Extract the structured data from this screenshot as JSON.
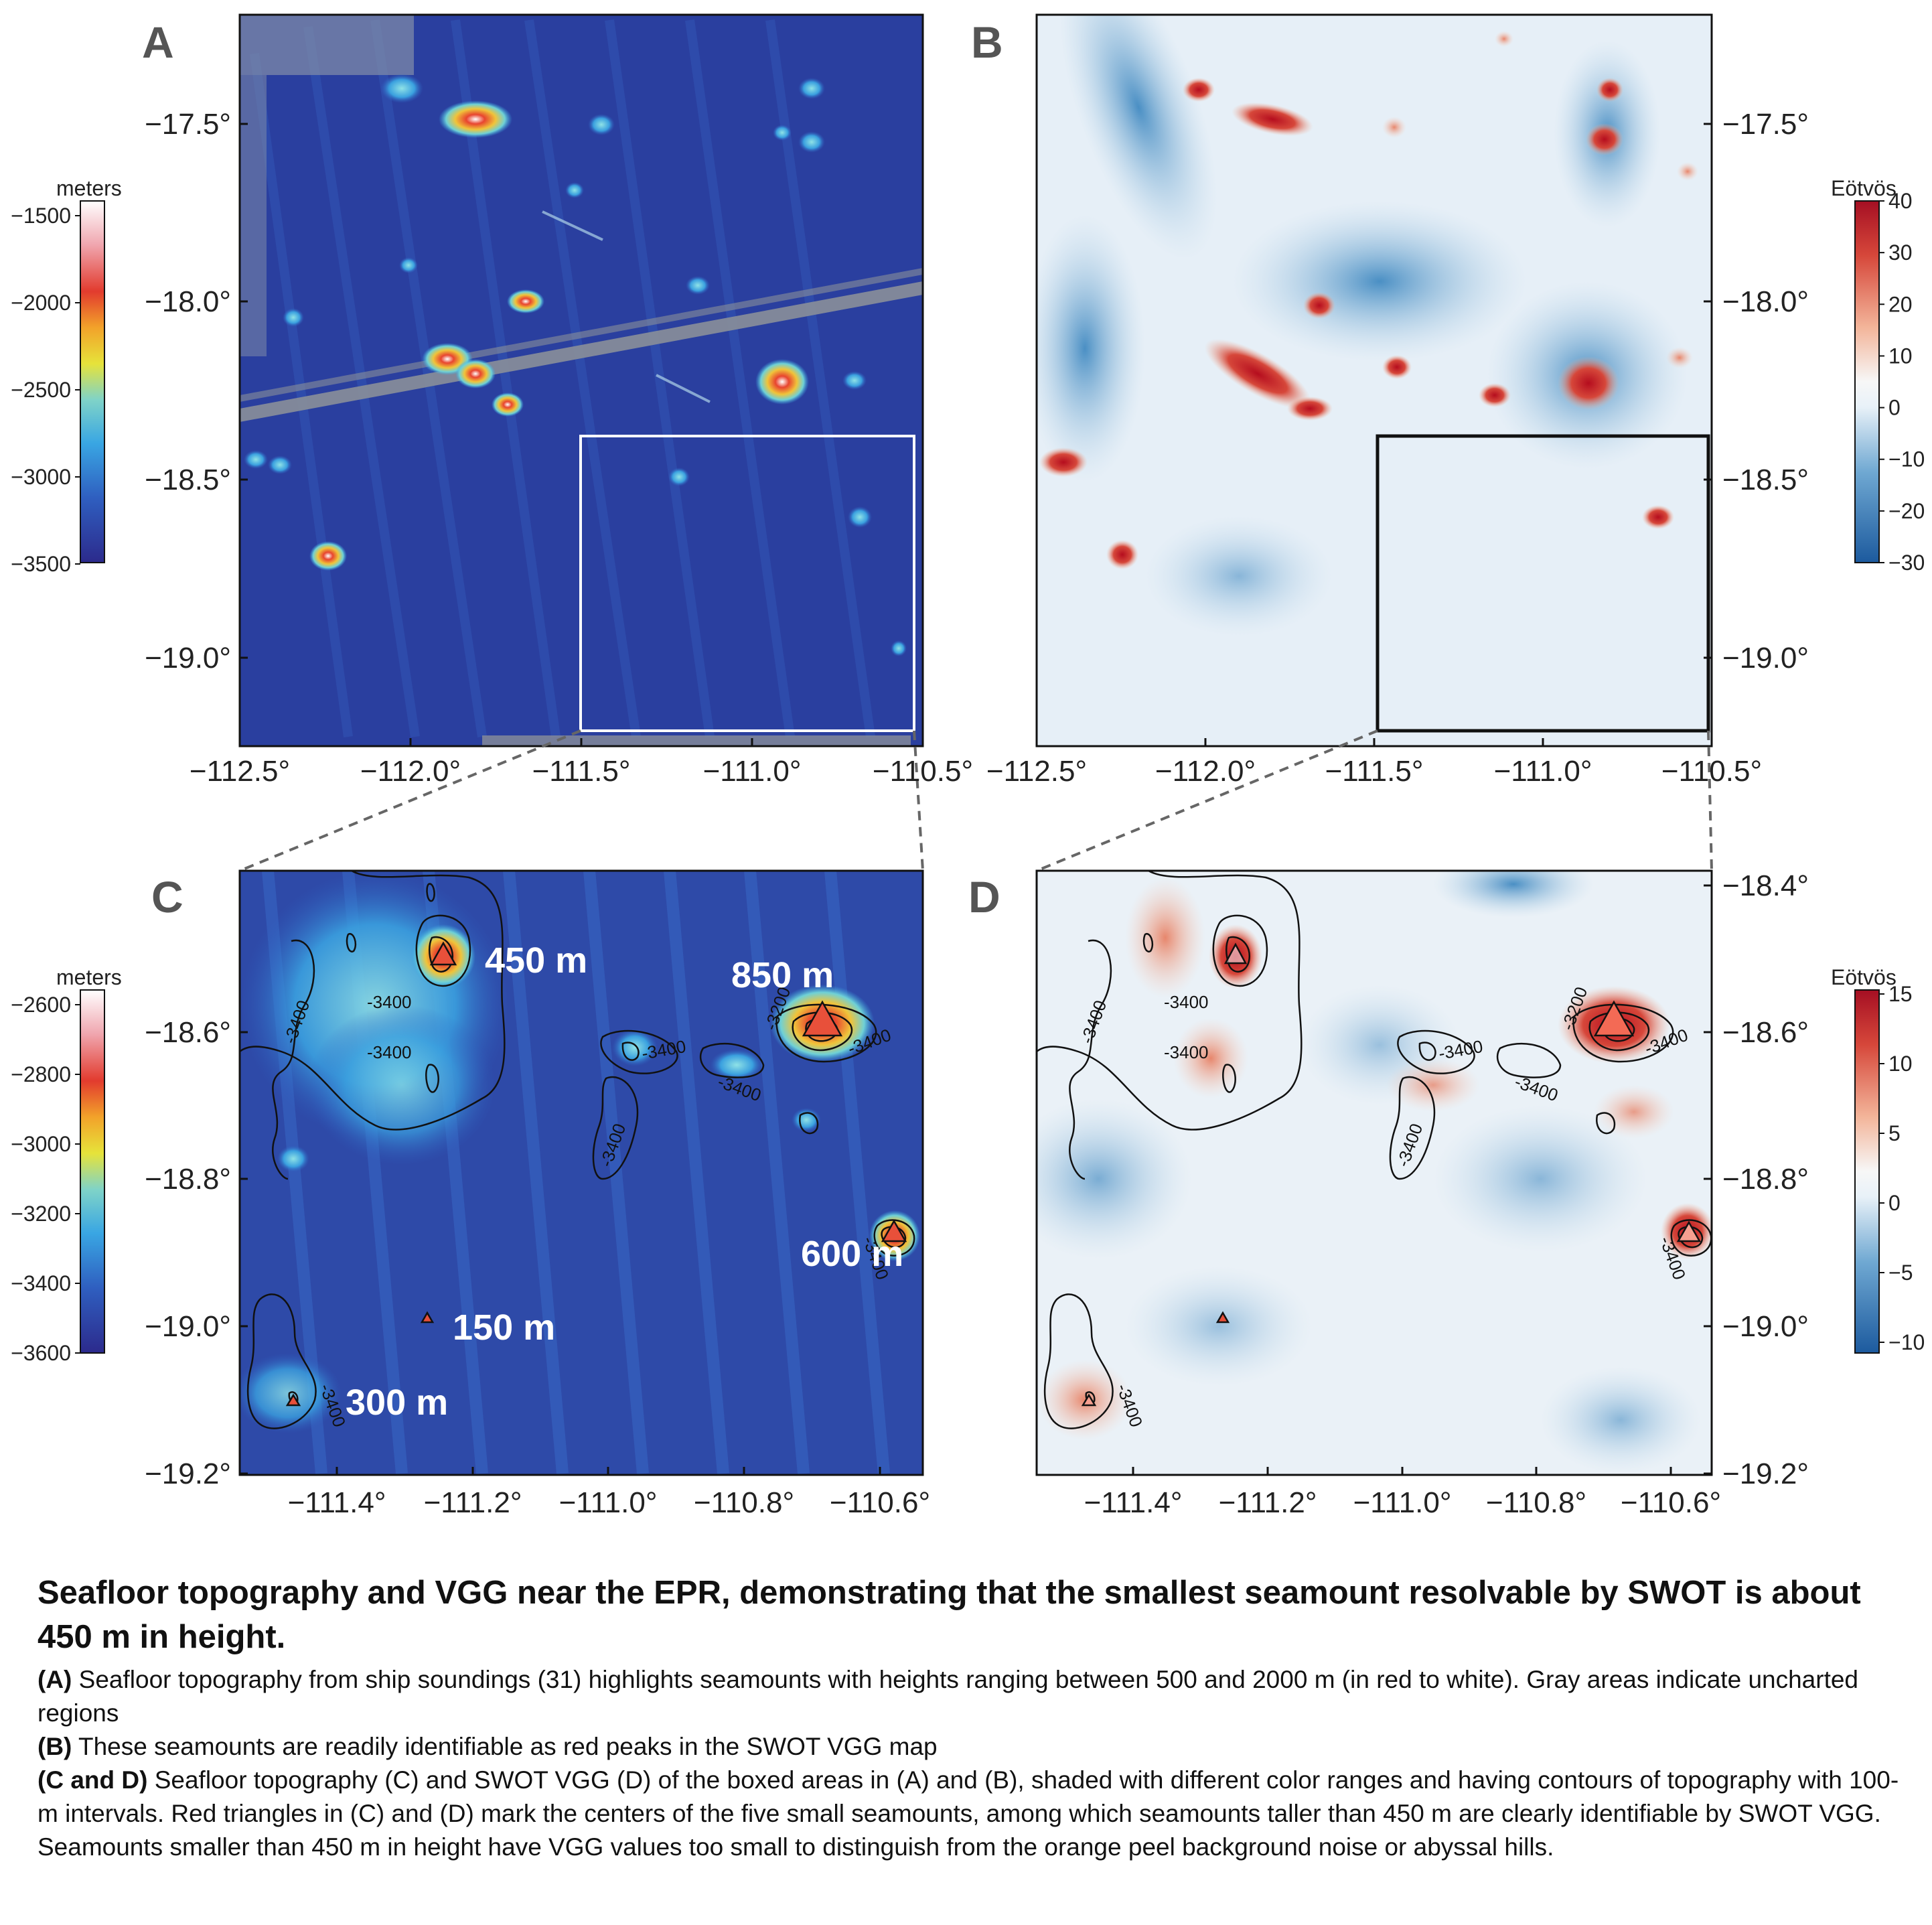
{
  "panels": {
    "a": {
      "label": "A",
      "colorbar_title": "meters",
      "colorbar_ticks": [
        "−1500",
        "−2000",
        "−2500",
        "−3000",
        "−3500"
      ]
    },
    "b": {
      "label": "B",
      "colorbar_title": "Eötvös",
      "colorbar_ticks": [
        "40",
        "30",
        "20",
        "10",
        "0",
        "−10",
        "−20",
        "−30"
      ]
    },
    "c": {
      "label": "C",
      "colorbar_title": "meters",
      "colorbar_ticks": [
        "−2600",
        "−2800",
        "−3000",
        "−3200",
        "−3400",
        "−3600"
      ],
      "height_labels": [
        "450 m",
        "850 m",
        "600 m",
        "150 m",
        "300 m"
      ]
    },
    "d": {
      "label": "D",
      "colorbar_title": "Eötvös",
      "colorbar_ticks": [
        "15",
        "10",
        "5",
        "0",
        "−5",
        "−10"
      ]
    }
  },
  "axes": {
    "top_lat_ticks": [
      "−17.5°",
      "−18.0°",
      "−18.5°",
      "−19.0°"
    ],
    "top_lon_ticks": [
      "−112.5°",
      "−112.0°",
      "−111.5°",
      "−111.0°",
      "−110.5°"
    ],
    "bottom_lat_ticks": [
      "−18.4°",
      "−18.6°",
      "−18.8°",
      "−19.0°",
      "−19.2°"
    ],
    "bottom_lon_ticks": [
      "−111.4°",
      "−111.2°",
      "−111.0°",
      "−110.8°",
      "−110.6°"
    ]
  },
  "contour_label": "-3400",
  "contour_label_alt": "-3200",
  "caption": {
    "title": "Seafloor topography and VGG near the EPR, demonstrating that the smallest seamount resolvable by SWOT is about 450 m in height.",
    "items": [
      {
        "tag": "(A)",
        "text": "Seafloor topography from ship soundings (31) highlights seamounts with heights ranging between 500 and 2000 m (in red to white). Gray areas indicate uncharted regions"
      },
      {
        "tag": "(B)",
        "text": "These seamounts are readily identifiable as red peaks in the SWOT VGG map"
      },
      {
        "tag": "(C and D)",
        "text": "Seafloor topography (C) and SWOT VGG (D) of the boxed areas in (A) and (B), shaded with different color ranges and having contours of topography with 100-m intervals. Red triangles in (C) and (D) mark the centers of the five small seamounts, among which seamounts taller than 450 m are clearly identifiable by SWOT VGG. Seamounts smaller than 450 m in height have VGG values too small to distinguish from the orange peel background noise or abyssal hills."
      }
    ]
  }
}
